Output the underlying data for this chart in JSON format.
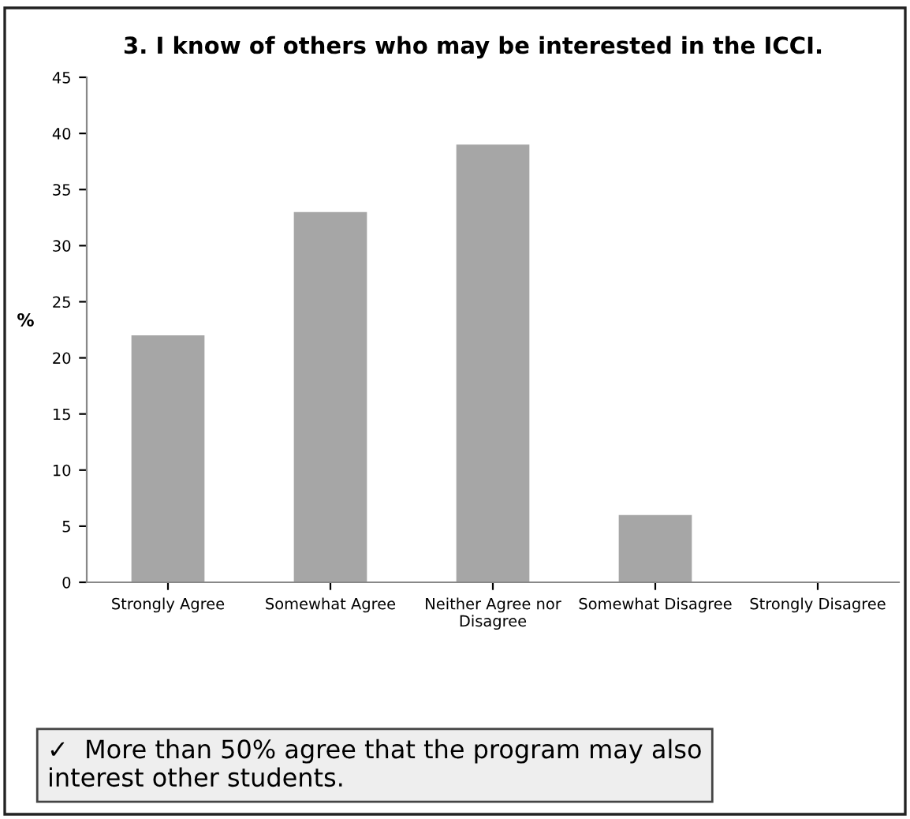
{
  "chart_data": {
    "type": "bar",
    "title": "3. I know of others who may be interested in the ICCI.",
    "categories": [
      "Strongly Agree",
      "Somewhat Agree",
      "Neither Agree nor\nDisagree",
      "Somewhat Disagree",
      "Strongly Disagree"
    ],
    "values": [
      22,
      33,
      39,
      6,
      0
    ],
    "color": "#a6a6a6",
    "ylabel": "%",
    "ylim": [
      0,
      45
    ],
    "yticks": [
      0,
      5,
      10,
      15,
      20,
      25,
      30,
      35,
      40,
      45
    ],
    "grid": false,
    "annotations": [
      "✓  More than 50% agree that the program may also\ninterest other students."
    ]
  }
}
